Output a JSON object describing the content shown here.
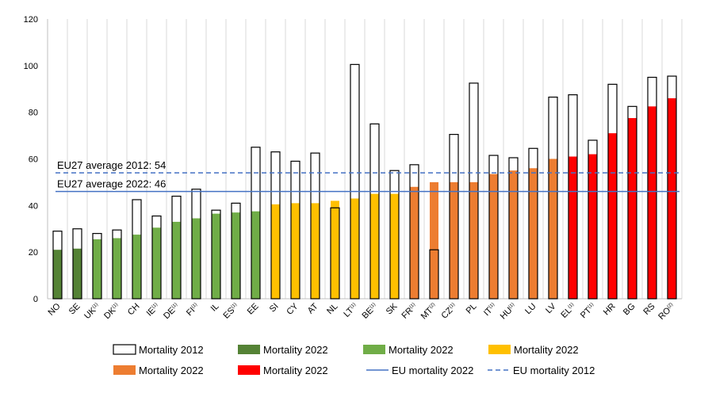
{
  "chart_data": {
    "type": "bar",
    "categories": [
      "NO",
      "SE",
      "UK",
      "DK",
      "CH",
      "IE",
      "DE",
      "FI",
      "IL",
      "ES",
      "EE",
      "SI",
      "CY",
      "AT",
      "NL",
      "LT",
      "BE",
      "SK",
      "FR",
      "MT",
      "CZ",
      "PL",
      "IT",
      "HU",
      "LU",
      "LV",
      "EL",
      "PT",
      "HR",
      "BG",
      "RS",
      "RO"
    ],
    "category_superscripts": [
      "",
      "",
      "(1)",
      "(1)",
      "",
      "(1)",
      "(1)",
      "(1)",
      "",
      "(1)",
      "",
      "",
      "",
      "",
      "",
      "(1)",
      "(1)",
      "",
      "(1)",
      "(2)",
      "(1)",
      "",
      "(1)",
      "(1)",
      "",
      "",
      "(1)",
      "(1)",
      "",
      "",
      "",
      "(2)"
    ],
    "series": [
      {
        "name": "Mortality 2012",
        "values": [
          29,
          30,
          28,
          29.5,
          42.5,
          35.5,
          44,
          47,
          38,
          41,
          65,
          63,
          59,
          62.5,
          39,
          100.5,
          75,
          55,
          57.5,
          21,
          70.5,
          92.5,
          61.5,
          60.5,
          64.5,
          86.5,
          87.5,
          68,
          92,
          82.5,
          95,
          95.5
        ]
      },
      {
        "name": "Mortality 2022",
        "values": [
          21,
          21.5,
          25.5,
          26,
          27.5,
          30.5,
          33,
          34.5,
          36.5,
          37,
          37.5,
          40.5,
          41,
          41,
          42,
          43,
          45,
          45,
          48,
          50,
          50,
          50,
          53.5,
          55,
          56,
          60,
          61,
          62,
          71,
          77.5,
          82.5,
          86
        ]
      }
    ],
    "bar_colors": [
      "#548235",
      "#548235",
      "#70ad47",
      "#70ad47",
      "#70ad47",
      "#70ad47",
      "#70ad47",
      "#70ad47",
      "#70ad47",
      "#70ad47",
      "#70ad47",
      "#ffc000",
      "#ffc000",
      "#ffc000",
      "#ffc000",
      "#ffc000",
      "#ffc000",
      "#ffc000",
      "#ed7d31",
      "#ed7d31",
      "#ed7d31",
      "#ed7d31",
      "#ed7d31",
      "#ed7d31",
      "#ed7d31",
      "#ed7d31",
      "#ff0000",
      "#ff0000",
      "#ff0000",
      "#ff0000",
      "#ff0000",
      "#ff0000"
    ],
    "reference_lines": [
      {
        "name": "EU mortality 2022",
        "value": 46,
        "style": "solid",
        "color": "#4472c4",
        "label": "EU27 average 2022: 46"
      },
      {
        "name": "EU mortality 2012",
        "value": 54,
        "style": "dashed",
        "color": "#4472c4",
        "label": "EU27 average 2012: 54"
      }
    ],
    "ylim": [
      0,
      120
    ],
    "yticks": [
      0,
      20,
      40,
      60,
      80,
      100,
      120
    ],
    "grid": "vertical",
    "legend": {
      "position": "bottom",
      "entries": [
        {
          "label": "Mortality 2012",
          "kind": "box-outline",
          "color": "#000000"
        },
        {
          "label": "Mortality 2022",
          "kind": "box",
          "color": "#548235"
        },
        {
          "label": "Mortality 2022",
          "kind": "box",
          "color": "#70ad47"
        },
        {
          "label": "Mortality 2022",
          "kind": "box",
          "color": "#ffc000"
        },
        {
          "label": "Mortality 2022",
          "kind": "box",
          "color": "#ed7d31"
        },
        {
          "label": "Mortality 2022",
          "kind": "box",
          "color": "#ff0000"
        },
        {
          "label": "EU mortality 2022",
          "kind": "line-solid",
          "color": "#4472c4"
        },
        {
          "label": "EU mortality 2012",
          "kind": "line-dashed",
          "color": "#4472c4"
        }
      ]
    },
    "title": "",
    "xlabel": "",
    "ylabel": ""
  }
}
